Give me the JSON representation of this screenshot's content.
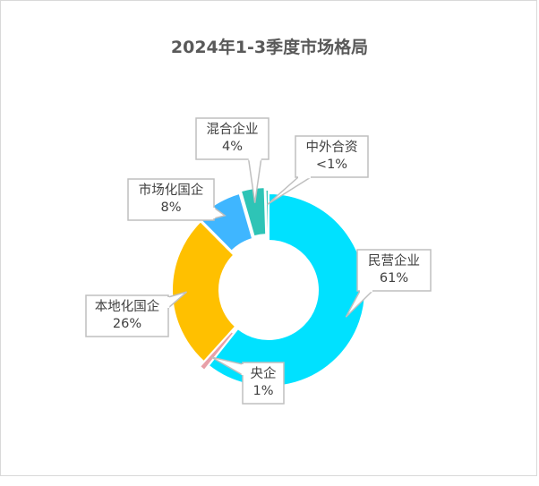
{
  "chart_data": {
    "type": "pie",
    "title": "2024年1-3季度市场格局",
    "donut": true,
    "slices": [
      {
        "name": "民营企业",
        "value": 61,
        "label": "61%",
        "color": "#00E1FF"
      },
      {
        "name": "央企",
        "value": 1,
        "label": "1%",
        "color": "#E8A0A8"
      },
      {
        "name": "本地化国企",
        "value": 26,
        "label": "26%",
        "color": "#FFC000"
      },
      {
        "name": "市场化国企",
        "value": 8,
        "label": "8%",
        "color": "#3FB6FF"
      },
      {
        "name": "混合企业",
        "value": 4,
        "label": "4%",
        "color": "#2EC4B6"
      },
      {
        "name": "中外合资",
        "value": 0.5,
        "label": "<1%",
        "color": "#2EC4B6"
      }
    ]
  }
}
